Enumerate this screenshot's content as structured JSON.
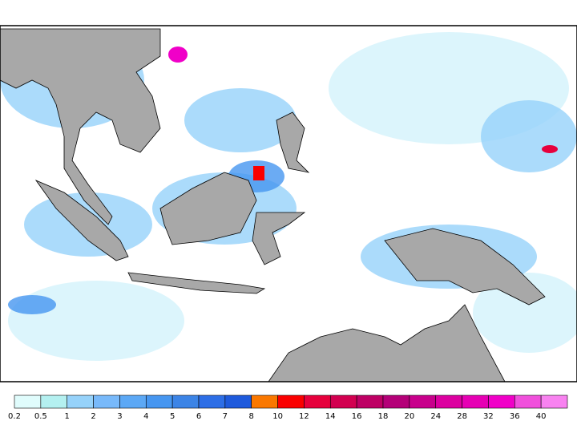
{
  "colorbar": {
    "ticks": [
      0.2,
      0.5,
      1,
      2,
      3,
      4,
      5,
      6,
      7,
      8,
      10,
      12,
      14,
      16,
      18,
      20,
      24,
      28,
      32,
      36,
      40
    ],
    "colors": [
      "#e0fcfc",
      "#b4f0f0",
      "#96d2fa",
      "#78b9fa",
      "#5ca8f5",
      "#4696f0",
      "#3c84e6",
      "#2d6ee6",
      "#1e5adc",
      "#fa7800",
      "#fa0000",
      "#e6003c",
      "#d20050",
      "#be0064",
      "#b40078",
      "#c8008c",
      "#dc00a0",
      "#e600b4",
      "#f000c8",
      "#f050dc",
      "#f882f0"
    ]
  }
}
